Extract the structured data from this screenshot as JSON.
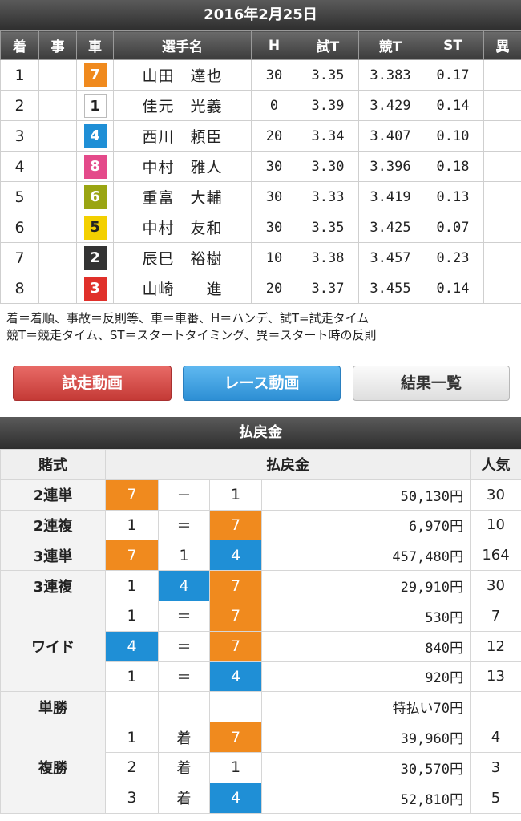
{
  "date": "2016年2月25日",
  "results": {
    "headers": [
      "着",
      "事",
      "車",
      "選手名",
      "H",
      "試T",
      "競T",
      "ST",
      "異"
    ],
    "rows": [
      {
        "rank": "1",
        "car": "7",
        "name": "山田　達也",
        "h": "30",
        "trial": "3.35",
        "race": "3.383",
        "st": "0.17"
      },
      {
        "rank": "2",
        "car": "1",
        "name": "佳元　光義",
        "h": "0",
        "trial": "3.39",
        "race": "3.429",
        "st": "0.14"
      },
      {
        "rank": "3",
        "car": "4",
        "name": "西川　頼臣",
        "h": "20",
        "trial": "3.34",
        "race": "3.407",
        "st": "0.10"
      },
      {
        "rank": "4",
        "car": "8",
        "name": "中村　雅人",
        "h": "30",
        "trial": "3.30",
        "race": "3.396",
        "st": "0.18"
      },
      {
        "rank": "5",
        "car": "6",
        "name": "重富　大輔",
        "h": "30",
        "trial": "3.33",
        "race": "3.419",
        "st": "0.13"
      },
      {
        "rank": "6",
        "car": "5",
        "name": "中村　友和",
        "h": "30",
        "trial": "3.35",
        "race": "3.425",
        "st": "0.07"
      },
      {
        "rank": "7",
        "car": "2",
        "name": "辰巳　裕樹",
        "h": "10",
        "trial": "3.38",
        "race": "3.457",
        "st": "0.23"
      },
      {
        "rank": "8",
        "car": "3",
        "name": "山崎　　進",
        "h": "20",
        "trial": "3.37",
        "race": "3.455",
        "st": "0.14"
      }
    ]
  },
  "legend": {
    "line1": "着＝着順、事故＝反則等、車＝車番、H＝ハンデ、試T=試走タイム",
    "line2": "競T＝競走タイム、ST＝スタートタイミング、異＝スタート時の反則"
  },
  "buttons": {
    "trial_video": "試走動画",
    "race_video": "レース動画",
    "results_list": "結果一覧"
  },
  "payout": {
    "title": "払戻金",
    "headers": {
      "type": "賭式",
      "amount": "払戻金",
      "popularity": "人気"
    },
    "types": {
      "nirentan": "2連単",
      "nirenpuku": "2連複",
      "sanrentan": "3連単",
      "sanrenpuku": "3連複",
      "wide": "ワイド",
      "tansho": "単勝",
      "fukusho": "複勝"
    },
    "symbols": {
      "dash": "－",
      "eq": "＝",
      "chaku": "着"
    },
    "nirentan": {
      "a": "7",
      "b": "1",
      "amount": "50,130円",
      "pop": "30"
    },
    "nirenpuku": {
      "a": "1",
      "b": "7",
      "amount": "6,970円",
      "pop": "10"
    },
    "sanrentan": {
      "a": "7",
      "b": "1",
      "c": "4",
      "amount": "457,480円",
      "pop": "164"
    },
    "sanrenpuku": {
      "a": "1",
      "b": "4",
      "c": "7",
      "amount": "29,910円",
      "pop": "30"
    },
    "wide": [
      {
        "a": "1",
        "b": "7",
        "amount": "530円",
        "pop": "7"
      },
      {
        "a": "4",
        "b": "7",
        "amount": "840円",
        "pop": "12"
      },
      {
        "a": "1",
        "b": "4",
        "amount": "920円",
        "pop": "13"
      }
    ],
    "tansho": {
      "amount": "特払い70円"
    },
    "fukusho": [
      {
        "place": "1",
        "car": "7",
        "amount": "39,960円",
        "pop": "4"
      },
      {
        "place": "2",
        "car": "1",
        "amount": "30,570円",
        "pop": "3"
      },
      {
        "place": "3",
        "car": "4",
        "amount": "52,810円",
        "pop": "5"
      }
    ]
  }
}
